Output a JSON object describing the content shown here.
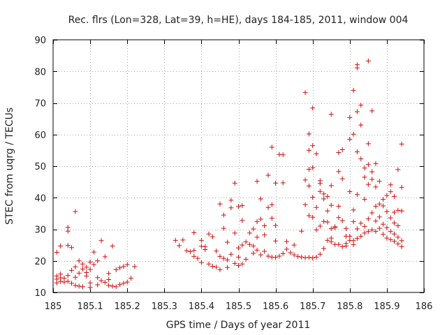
{
  "chart_data": {
    "type": "scatter",
    "title": "Rec. flrs (Lon=328, Lat=39, h=HE), days 184-185, 2011, window 004",
    "xlabel": "GPS time / Days of year 2011",
    "ylabel": "STEC from uqrg / TECUs",
    "xlim": [
      185,
      186
    ],
    "ylim": [
      10,
      90
    ],
    "xticks": [
      185,
      185.1,
      185.2,
      185.3,
      185.4,
      185.5,
      185.6,
      185.7,
      185.8,
      185.9,
      186
    ],
    "xtick_labels": [
      "185",
      "185.1",
      "185.2",
      "185.3",
      "185.4",
      "185.5",
      "185.6",
      "185.7",
      "185.8",
      "185.9",
      "186"
    ],
    "yticks": [
      10,
      20,
      30,
      40,
      50,
      60,
      70,
      80,
      90
    ],
    "ytick_labels": [
      "10",
      "20",
      "30",
      "40",
      "50",
      "60",
      "70",
      "80",
      "90"
    ],
    "grid": true,
    "marker": "+",
    "color": "#d01010",
    "points": [
      [
        185.01,
        15.2
      ],
      [
        185.01,
        14.2
      ],
      [
        185.01,
        13.0
      ],
      [
        185.01,
        22.7
      ],
      [
        185.02,
        13.5
      ],
      [
        185.02,
        14.6
      ],
      [
        185.02,
        15.8
      ],
      [
        185.02,
        24.7
      ],
      [
        185.03,
        13.3
      ],
      [
        185.03,
        14.5
      ],
      [
        185.04,
        13.5
      ],
      [
        185.04,
        15.4
      ],
      [
        185.04,
        29.4
      ],
      [
        185.04,
        30.6
      ],
      [
        185.04,
        24.9
      ],
      [
        185.05,
        12.9
      ],
      [
        185.05,
        17.0
      ],
      [
        185.05,
        24.2
      ],
      [
        185.06,
        35.6
      ],
      [
        185.06,
        12.2
      ],
      [
        185.06,
        14.8
      ],
      [
        185.06,
        18.1
      ],
      [
        185.07,
        12.0
      ],
      [
        185.07,
        16.1
      ],
      [
        185.07,
        20.0
      ],
      [
        185.08,
        11.8
      ],
      [
        185.08,
        19.0
      ],
      [
        185.08,
        17.4
      ],
      [
        185.09,
        15.2
      ],
      [
        185.09,
        18.0
      ],
      [
        185.09,
        16.3
      ],
      [
        185.1,
        13.0
      ],
      [
        185.1,
        17.3
      ],
      [
        185.1,
        19.6
      ],
      [
        185.1,
        11.6
      ],
      [
        185.11,
        22.8
      ],
      [
        185.11,
        18.8
      ],
      [
        185.12,
        12.4
      ],
      [
        185.12,
        14.7
      ],
      [
        185.12,
        20.0
      ],
      [
        185.13,
        13.7
      ],
      [
        185.13,
        26.4
      ],
      [
        185.14,
        13.2
      ],
      [
        185.14,
        21.3
      ],
      [
        185.15,
        14.1
      ],
      [
        185.15,
        12.2
      ],
      [
        185.15,
        16.0
      ],
      [
        185.16,
        24.7
      ],
      [
        185.16,
        12.0
      ],
      [
        185.17,
        17.2
      ],
      [
        185.17,
        11.8
      ],
      [
        185.18,
        12.5
      ],
      [
        185.18,
        17.8
      ],
      [
        185.19,
        12.9
      ],
      [
        185.19,
        18.2
      ],
      [
        185.2,
        18.8
      ],
      [
        185.2,
        13.3
      ],
      [
        185.21,
        14.5
      ],
      [
        185.22,
        18.2
      ],
      [
        185.33,
        26.5
      ],
      [
        185.34,
        24.8
      ],
      [
        185.35,
        26.6
      ],
      [
        185.36,
        23.2
      ],
      [
        185.37,
        22.9
      ],
      [
        185.38,
        23.3
      ],
      [
        185.38,
        28.9
      ],
      [
        185.38,
        21.4
      ],
      [
        185.39,
        20.8
      ],
      [
        185.4,
        26.5
      ],
      [
        185.4,
        24.6
      ],
      [
        185.4,
        19.5
      ],
      [
        185.41,
        23.6
      ],
      [
        185.41,
        24.5
      ],
      [
        185.42,
        19.0
      ],
      [
        185.42,
        28.5
      ],
      [
        185.43,
        18.3
      ],
      [
        185.43,
        27.6
      ],
      [
        185.44,
        23.1
      ],
      [
        185.44,
        18.0
      ],
      [
        185.45,
        17.2
      ],
      [
        185.45,
        21.4
      ],
      [
        185.45,
        38.0
      ],
      [
        185.46,
        20.8
      ],
      [
        185.46,
        30.3
      ],
      [
        185.46,
        34.5
      ],
      [
        185.47,
        17.9
      ],
      [
        185.47,
        20.3
      ],
      [
        185.47,
        25.9
      ],
      [
        185.48,
        22.1
      ],
      [
        185.48,
        36.8
      ],
      [
        185.48,
        39.2
      ],
      [
        185.49,
        19.2
      ],
      [
        185.49,
        28.8
      ],
      [
        185.49,
        44.6
      ],
      [
        185.5,
        21.2
      ],
      [
        185.5,
        18.5
      ],
      [
        185.5,
        37.2
      ],
      [
        185.5,
        24.1
      ],
      [
        185.51,
        19.0
      ],
      [
        185.51,
        25.0
      ],
      [
        185.51,
        32.8
      ],
      [
        185.51,
        37.5
      ],
      [
        185.52,
        20.5
      ],
      [
        185.52,
        26.0
      ],
      [
        185.53,
        25.2
      ],
      [
        185.53,
        28.8
      ],
      [
        185.54,
        22.4
      ],
      [
        185.54,
        24.7
      ],
      [
        185.54,
        30.1
      ],
      [
        185.55,
        27.5
      ],
      [
        185.55,
        23.4
      ],
      [
        185.55,
        32.4
      ],
      [
        185.55,
        45.2
      ],
      [
        185.56,
        21.9
      ],
      [
        185.56,
        39.6
      ],
      [
        185.56,
        33.2
      ],
      [
        185.57,
        23.0
      ],
      [
        185.57,
        28.2
      ],
      [
        185.57,
        31.1
      ],
      [
        185.58,
        21.5
      ],
      [
        185.58,
        36.9
      ],
      [
        185.58,
        47.1
      ],
      [
        185.59,
        21.2
      ],
      [
        185.59,
        33.5
      ],
      [
        185.59,
        37.8
      ],
      [
        185.59,
        56.0
      ],
      [
        185.6,
        21.1
      ],
      [
        185.6,
        26.3
      ],
      [
        185.6,
        44.6
      ],
      [
        185.6,
        31.2
      ],
      [
        185.61,
        21.5
      ],
      [
        185.61,
        53.7
      ],
      [
        185.62,
        44.7
      ],
      [
        185.62,
        22.3
      ],
      [
        185.62,
        53.6
      ],
      [
        185.63,
        23.7
      ],
      [
        185.63,
        26.1
      ],
      [
        185.64,
        22.6
      ],
      [
        185.65,
        21.9
      ],
      [
        185.65,
        25.0
      ],
      [
        185.66,
        21.4
      ],
      [
        185.67,
        29.4
      ],
      [
        185.67,
        21.2
      ],
      [
        185.68,
        45.6
      ],
      [
        185.68,
        73.3
      ],
      [
        185.68,
        21.0
      ],
      [
        185.68,
        37.8
      ],
      [
        185.69,
        21.1
      ],
      [
        185.69,
        34.3
      ],
      [
        185.69,
        43.7
      ],
      [
        185.69,
        49.0
      ],
      [
        185.69,
        55.0
      ],
      [
        185.69,
        60.2
      ],
      [
        185.7,
        20.9
      ],
      [
        185.7,
        33.8
      ],
      [
        185.7,
        40.1
      ],
      [
        185.7,
        49.5
      ],
      [
        185.7,
        56.5
      ],
      [
        185.7,
        68.4
      ],
      [
        185.71,
        21.2
      ],
      [
        185.71,
        29.8
      ],
      [
        185.71,
        36.9
      ],
      [
        185.71,
        53.9
      ],
      [
        185.72,
        22.1
      ],
      [
        185.72,
        42.0
      ],
      [
        185.72,
        31.0
      ],
      [
        185.72,
        45.4
      ],
      [
        185.72,
        44.5
      ],
      [
        185.73,
        23.9
      ],
      [
        185.73,
        32.5
      ],
      [
        185.73,
        39.6
      ],
      [
        185.73,
        41.2
      ],
      [
        185.74,
        26.5
      ],
      [
        185.74,
        35.8
      ],
      [
        185.74,
        32.3
      ],
      [
        185.74,
        40.4
      ],
      [
        185.75,
        26.0
      ],
      [
        185.75,
        27.2
      ],
      [
        185.75,
        30.2
      ],
      [
        185.75,
        37.6
      ],
      [
        185.75,
        43.8
      ],
      [
        185.75,
        66.4
      ],
      [
        185.76,
        25.2
      ],
      [
        185.76,
        30.5
      ],
      [
        185.76,
        30.8
      ],
      [
        185.77,
        25.2
      ],
      [
        185.77,
        33.7
      ],
      [
        185.77,
        37.3
      ],
      [
        185.77,
        48.3
      ],
      [
        185.77,
        54.3
      ],
      [
        185.78,
        24.5
      ],
      [
        185.78,
        32.7
      ],
      [
        185.78,
        46.0
      ],
      [
        185.78,
        55.2
      ],
      [
        185.79,
        24.7
      ],
      [
        185.79,
        25.5
      ],
      [
        185.79,
        27.8
      ],
      [
        185.79,
        30.2
      ],
      [
        185.8,
        26.5
      ],
      [
        185.8,
        27.8
      ],
      [
        185.8,
        41.9
      ],
      [
        185.8,
        58.5
      ],
      [
        185.8,
        65.4
      ],
      [
        185.81,
        25.1
      ],
      [
        185.81,
        26.4
      ],
      [
        185.81,
        32.4
      ],
      [
        185.81,
        36.1
      ],
      [
        185.81,
        60.1
      ],
      [
        185.81,
        74.0
      ],
      [
        185.82,
        27.1
      ],
      [
        185.82,
        30.1
      ],
      [
        185.82,
        41.0
      ],
      [
        185.82,
        54.5
      ],
      [
        185.82,
        67.2
      ],
      [
        185.82,
        81.1
      ],
      [
        185.82,
        82.1
      ],
      [
        185.83,
        27.8
      ],
      [
        185.83,
        31.9
      ],
      [
        185.83,
        52.3
      ],
      [
        185.83,
        63.0
      ],
      [
        185.83,
        69.3
      ],
      [
        185.84,
        28.8
      ],
      [
        185.84,
        30.9
      ],
      [
        185.84,
        39.5
      ],
      [
        185.84,
        46.5
      ],
      [
        185.84,
        49.4
      ],
      [
        185.85,
        29.3
      ],
      [
        185.85,
        33.3
      ],
      [
        185.85,
        44.2
      ],
      [
        185.85,
        50.5
      ],
      [
        185.85,
        57.1
      ],
      [
        185.85,
        83.3
      ],
      [
        185.86,
        29.8
      ],
      [
        185.86,
        35.2
      ],
      [
        185.86,
        45.8
      ],
      [
        185.86,
        48.2
      ],
      [
        185.86,
        67.5
      ],
      [
        185.87,
        29.3
      ],
      [
        185.87,
        32.6
      ],
      [
        185.87,
        37.3
      ],
      [
        185.87,
        43.4
      ],
      [
        185.87,
        50.8
      ],
      [
        185.88,
        30.3
      ],
      [
        185.88,
        33.9
      ],
      [
        185.88,
        38.0
      ],
      [
        185.88,
        45.2
      ],
      [
        185.89,
        28.4
      ],
      [
        185.89,
        31.6
      ],
      [
        185.89,
        37.4
      ],
      [
        185.89,
        39.5
      ],
      [
        185.9,
        27.2
      ],
      [
        185.9,
        30.5
      ],
      [
        185.9,
        35.6
      ],
      [
        185.9,
        40.7
      ],
      [
        185.91,
        26.7
      ],
      [
        185.91,
        29.3
      ],
      [
        185.91,
        33.6
      ],
      [
        185.91,
        41.9
      ],
      [
        185.91,
        44.1
      ],
      [
        185.92,
        26.2
      ],
      [
        185.92,
        28.5
      ],
      [
        185.92,
        32.0
      ],
      [
        185.92,
        35.4
      ],
      [
        185.92,
        40.4
      ],
      [
        185.93,
        25.4
      ],
      [
        185.93,
        27.5
      ],
      [
        185.93,
        31.1
      ],
      [
        185.93,
        48.9
      ],
      [
        185.93,
        36.0
      ],
      [
        185.94,
        24.5
      ],
      [
        185.94,
        26.4
      ],
      [
        185.94,
        43.3
      ],
      [
        185.94,
        57.0
      ],
      [
        185.94,
        35.8
      ]
    ]
  }
}
